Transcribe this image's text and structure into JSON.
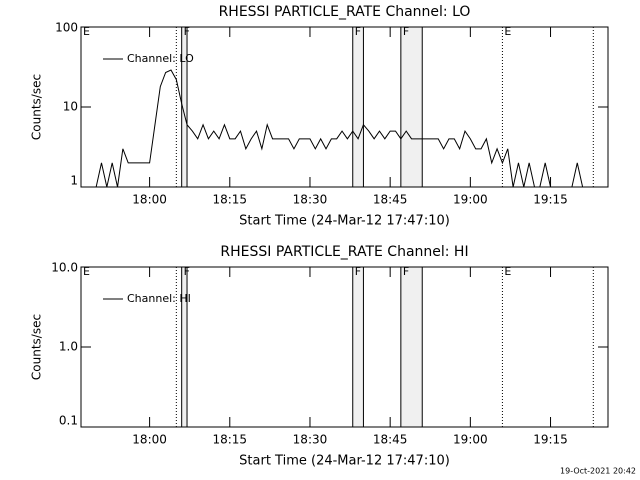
{
  "chart_data": [
    {
      "type": "line",
      "title": "RHESSI PARTICLE_RATE Channel: LO",
      "x_label": "Start Time (24-Mar-12 17:47:10)",
      "y_label": "Counts/sec",
      "log_y": true,
      "legend": "upper left",
      "color": "#000000",
      "xlim": [
        "17:47:10",
        "19:25:45"
      ],
      "xticks": [
        "18:00",
        "18:15",
        "18:30",
        "18:45",
        "19:00",
        "19:15"
      ],
      "ylim": [
        1,
        100
      ],
      "yticks": [
        1,
        10,
        100
      ],
      "series": [
        {
          "name": "Channel: LO",
          "color": "#000000",
          "x": [
            "17:50",
            "17:51",
            "17:52",
            "17:53",
            "17:54",
            "17:55",
            "17:56",
            "17:57",
            "17:58",
            "17:59",
            "18:00",
            "18:01",
            "18:02",
            "18:03",
            "18:04",
            "18:05",
            "18:06",
            "18:07",
            "18:08",
            "18:09",
            "18:10",
            "18:11",
            "18:12",
            "18:13",
            "18:14",
            "18:15",
            "18:16",
            "18:17",
            "18:18",
            "18:19",
            "18:20",
            "18:21",
            "18:22",
            "18:23",
            "18:24",
            "18:25",
            "18:26",
            "18:27",
            "18:28",
            "18:29",
            "18:30",
            "18:31",
            "18:32",
            "18:33",
            "18:34",
            "18:35",
            "18:36",
            "18:37",
            "18:38",
            "18:39",
            "18:40",
            "18:41",
            "18:42",
            "18:43",
            "18:44",
            "18:45",
            "18:46",
            "18:47",
            "18:48",
            "18:49",
            "18:50",
            "18:51",
            "18:52",
            "18:53",
            "18:54",
            "18:55",
            "18:56",
            "18:57",
            "18:58",
            "18:59",
            "19:00",
            "19:01",
            "19:02",
            "19:03",
            "19:04",
            "19:05",
            "19:06",
            "19:07",
            "19:08",
            "19:09",
            "19:10",
            "19:11",
            "19:12",
            "19:13",
            "19:14",
            "19:15",
            "19:16",
            "19:17",
            "19:18",
            "19:19",
            "19:20",
            "19:21"
          ],
          "values": [
            1,
            2,
            1,
            2,
            1,
            3,
            2,
            2,
            2,
            2,
            2,
            6,
            18,
            27,
            29,
            22,
            11,
            6,
            5,
            4,
            6,
            4,
            5,
            4,
            6,
            4,
            4,
            5,
            3,
            4,
            5,
            3,
            6,
            4,
            4,
            4,
            4,
            3,
            4,
            4,
            4,
            3,
            4,
            3,
            4,
            4,
            5,
            4,
            5,
            4,
            6,
            5,
            4,
            5,
            4,
            5,
            5,
            4,
            5,
            4,
            4,
            4,
            4,
            4,
            4,
            3,
            4,
            4,
            3,
            5,
            4,
            3,
            3,
            4,
            2,
            3,
            2,
            3,
            1,
            2,
            1,
            2,
            1,
            1,
            2,
            1,
            1,
            1,
            1,
            1,
            2,
            1
          ]
        }
      ],
      "spans": [
        [
          "18:06",
          "18:07"
        ],
        [
          "18:38",
          "18:40"
        ],
        [
          "18:47",
          "18:51"
        ]
      ],
      "lines": [
        {
          "x": "18:05",
          "style": "dotted"
        },
        {
          "x": "18:06",
          "style": "solid"
        },
        {
          "x": "18:07",
          "style": "solid"
        },
        {
          "x": "18:38",
          "style": "solid"
        },
        {
          "x": "18:40",
          "style": "solid"
        },
        {
          "x": "18:47",
          "style": "solid"
        },
        {
          "x": "18:51",
          "style": "solid"
        },
        {
          "x": "19:06",
          "style": "dotted"
        },
        {
          "x": "19:23",
          "style": "dotted"
        }
      ],
      "flags": [
        {
          "text": "E",
          "x": "17:47:10"
        },
        {
          "text": "F",
          "x": "18:06"
        },
        {
          "text": "F",
          "x": "18:38"
        },
        {
          "text": "F",
          "x": "18:47"
        },
        {
          "text": "E",
          "x": "19:06"
        }
      ]
    },
    {
      "type": "line",
      "title": "RHESSI PARTICLE_RATE Channel: HI",
      "x_label": "Start Time (24-Mar-12 17:47:10)",
      "y_label": "Counts/sec",
      "log_y": true,
      "legend": "upper left",
      "color": "#000000",
      "xlim": [
        "17:47:10",
        "19:25:45"
      ],
      "xticks": [
        "18:00",
        "18:15",
        "18:30",
        "18:45",
        "19:00",
        "19:15"
      ],
      "ylim": [
        0.1,
        10
      ],
      "yticks": [
        0.1,
        {
          "value": 1,
          "label": "1.0"
        },
        {
          "value": 10,
          "label": "10.0"
        }
      ],
      "series": [
        {
          "name": "Channel: HI",
          "color": "#000000",
          "x": [],
          "values": []
        }
      ],
      "spans": [
        [
          "18:06",
          "18:07"
        ],
        [
          "18:38",
          "18:40"
        ],
        [
          "18:47",
          "18:51"
        ]
      ],
      "lines": [
        {
          "x": "18:05",
          "style": "dotted"
        },
        {
          "x": "18:06",
          "style": "solid"
        },
        {
          "x": "18:07",
          "style": "solid"
        },
        {
          "x": "18:38",
          "style": "solid"
        },
        {
          "x": "18:40",
          "style": "solid"
        },
        {
          "x": "18:47",
          "style": "solid"
        },
        {
          "x": "18:51",
          "style": "solid"
        },
        {
          "x": "19:06",
          "style": "dotted"
        },
        {
          "x": "19:23",
          "style": "dotted"
        }
      ],
      "flags": [
        {
          "text": "E",
          "x": "17:47:10"
        },
        {
          "text": "F",
          "x": "18:06"
        },
        {
          "text": "F",
          "x": "18:38"
        },
        {
          "text": "F",
          "x": "18:47"
        },
        {
          "text": "E",
          "x": "19:06"
        }
      ]
    }
  ],
  "footer": "19-Oct-2021 20:42"
}
